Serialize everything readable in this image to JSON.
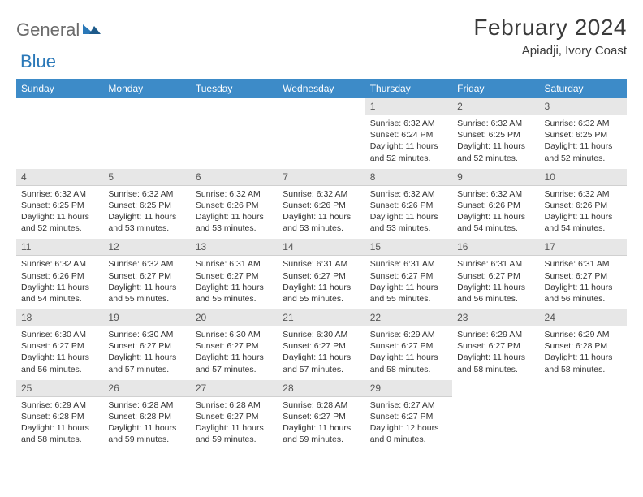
{
  "brand": {
    "part1": "General",
    "part2": "Blue"
  },
  "title": "February 2024",
  "location": "Apiadji, Ivory Coast",
  "colors": {
    "header_bg": "#3d8bc8",
    "header_text": "#ffffff",
    "daybar_bg": "#e7e7e7",
    "text": "#333333",
    "brand_gray": "#6b6b6b",
    "brand_blue": "#2a78b8"
  },
  "weekdays": [
    "Sunday",
    "Monday",
    "Tuesday",
    "Wednesday",
    "Thursday",
    "Friday",
    "Saturday"
  ],
  "weeks": [
    [
      null,
      null,
      null,
      null,
      {
        "n": "1",
        "sunrise": "Sunrise: 6:32 AM",
        "sunset": "Sunset: 6:24 PM",
        "daylight": "Daylight: 11 hours and 52 minutes."
      },
      {
        "n": "2",
        "sunrise": "Sunrise: 6:32 AM",
        "sunset": "Sunset: 6:25 PM",
        "daylight": "Daylight: 11 hours and 52 minutes."
      },
      {
        "n": "3",
        "sunrise": "Sunrise: 6:32 AM",
        "sunset": "Sunset: 6:25 PM",
        "daylight": "Daylight: 11 hours and 52 minutes."
      }
    ],
    [
      {
        "n": "4",
        "sunrise": "Sunrise: 6:32 AM",
        "sunset": "Sunset: 6:25 PM",
        "daylight": "Daylight: 11 hours and 52 minutes."
      },
      {
        "n": "5",
        "sunrise": "Sunrise: 6:32 AM",
        "sunset": "Sunset: 6:25 PM",
        "daylight": "Daylight: 11 hours and 53 minutes."
      },
      {
        "n": "6",
        "sunrise": "Sunrise: 6:32 AM",
        "sunset": "Sunset: 6:26 PM",
        "daylight": "Daylight: 11 hours and 53 minutes."
      },
      {
        "n": "7",
        "sunrise": "Sunrise: 6:32 AM",
        "sunset": "Sunset: 6:26 PM",
        "daylight": "Daylight: 11 hours and 53 minutes."
      },
      {
        "n": "8",
        "sunrise": "Sunrise: 6:32 AM",
        "sunset": "Sunset: 6:26 PM",
        "daylight": "Daylight: 11 hours and 53 minutes."
      },
      {
        "n": "9",
        "sunrise": "Sunrise: 6:32 AM",
        "sunset": "Sunset: 6:26 PM",
        "daylight": "Daylight: 11 hours and 54 minutes."
      },
      {
        "n": "10",
        "sunrise": "Sunrise: 6:32 AM",
        "sunset": "Sunset: 6:26 PM",
        "daylight": "Daylight: 11 hours and 54 minutes."
      }
    ],
    [
      {
        "n": "11",
        "sunrise": "Sunrise: 6:32 AM",
        "sunset": "Sunset: 6:26 PM",
        "daylight": "Daylight: 11 hours and 54 minutes."
      },
      {
        "n": "12",
        "sunrise": "Sunrise: 6:32 AM",
        "sunset": "Sunset: 6:27 PM",
        "daylight": "Daylight: 11 hours and 55 minutes."
      },
      {
        "n": "13",
        "sunrise": "Sunrise: 6:31 AM",
        "sunset": "Sunset: 6:27 PM",
        "daylight": "Daylight: 11 hours and 55 minutes."
      },
      {
        "n": "14",
        "sunrise": "Sunrise: 6:31 AM",
        "sunset": "Sunset: 6:27 PM",
        "daylight": "Daylight: 11 hours and 55 minutes."
      },
      {
        "n": "15",
        "sunrise": "Sunrise: 6:31 AM",
        "sunset": "Sunset: 6:27 PM",
        "daylight": "Daylight: 11 hours and 55 minutes."
      },
      {
        "n": "16",
        "sunrise": "Sunrise: 6:31 AM",
        "sunset": "Sunset: 6:27 PM",
        "daylight": "Daylight: 11 hours and 56 minutes."
      },
      {
        "n": "17",
        "sunrise": "Sunrise: 6:31 AM",
        "sunset": "Sunset: 6:27 PM",
        "daylight": "Daylight: 11 hours and 56 minutes."
      }
    ],
    [
      {
        "n": "18",
        "sunrise": "Sunrise: 6:30 AM",
        "sunset": "Sunset: 6:27 PM",
        "daylight": "Daylight: 11 hours and 56 minutes."
      },
      {
        "n": "19",
        "sunrise": "Sunrise: 6:30 AM",
        "sunset": "Sunset: 6:27 PM",
        "daylight": "Daylight: 11 hours and 57 minutes."
      },
      {
        "n": "20",
        "sunrise": "Sunrise: 6:30 AM",
        "sunset": "Sunset: 6:27 PM",
        "daylight": "Daylight: 11 hours and 57 minutes."
      },
      {
        "n": "21",
        "sunrise": "Sunrise: 6:30 AM",
        "sunset": "Sunset: 6:27 PM",
        "daylight": "Daylight: 11 hours and 57 minutes."
      },
      {
        "n": "22",
        "sunrise": "Sunrise: 6:29 AM",
        "sunset": "Sunset: 6:27 PM",
        "daylight": "Daylight: 11 hours and 58 minutes."
      },
      {
        "n": "23",
        "sunrise": "Sunrise: 6:29 AM",
        "sunset": "Sunset: 6:27 PM",
        "daylight": "Daylight: 11 hours and 58 minutes."
      },
      {
        "n": "24",
        "sunrise": "Sunrise: 6:29 AM",
        "sunset": "Sunset: 6:28 PM",
        "daylight": "Daylight: 11 hours and 58 minutes."
      }
    ],
    [
      {
        "n": "25",
        "sunrise": "Sunrise: 6:29 AM",
        "sunset": "Sunset: 6:28 PM",
        "daylight": "Daylight: 11 hours and 58 minutes."
      },
      {
        "n": "26",
        "sunrise": "Sunrise: 6:28 AM",
        "sunset": "Sunset: 6:28 PM",
        "daylight": "Daylight: 11 hours and 59 minutes."
      },
      {
        "n": "27",
        "sunrise": "Sunrise: 6:28 AM",
        "sunset": "Sunset: 6:27 PM",
        "daylight": "Daylight: 11 hours and 59 minutes."
      },
      {
        "n": "28",
        "sunrise": "Sunrise: 6:28 AM",
        "sunset": "Sunset: 6:27 PM",
        "daylight": "Daylight: 11 hours and 59 minutes."
      },
      {
        "n": "29",
        "sunrise": "Sunrise: 6:27 AM",
        "sunset": "Sunset: 6:27 PM",
        "daylight": "Daylight: 12 hours and 0 minutes."
      },
      null,
      null
    ]
  ]
}
